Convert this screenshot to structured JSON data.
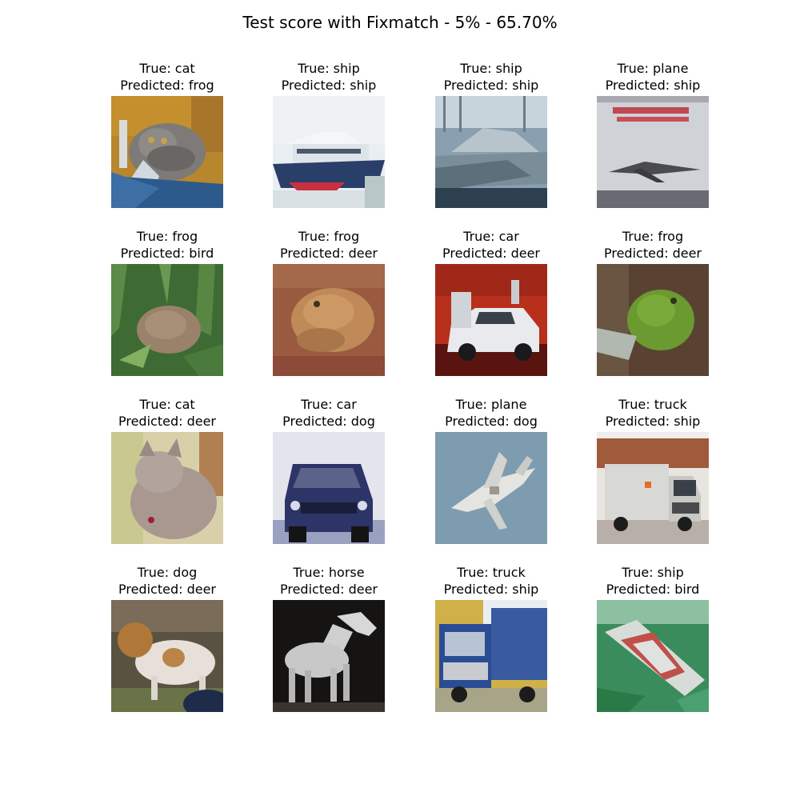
{
  "figure": {
    "title": "Test score with Fixmatch - 5% - 65.70%"
  },
  "samples": [
    {
      "true_label": "True: cat",
      "predicted_label": "Predicted: frog",
      "scene": "grey tabby cat lying on blue cloth, orange background"
    },
    {
      "true_label": "True: ship",
      "predicted_label": "Predicted: ship",
      "scene": "white ferry with blue hull on light water"
    },
    {
      "true_label": "True: ship",
      "predicted_label": "Predicted: ship",
      "scene": "grey motor boat in harbor"
    },
    {
      "true_label": "True: plane",
      "predicted_label": "Predicted: ship",
      "scene": "concorde-like jet on poster"
    },
    {
      "true_label": "True: frog",
      "predicted_label": "Predicted: bird",
      "scene": "brown frog among green grass"
    },
    {
      "true_label": "True: frog",
      "predicted_label": "Predicted: deer",
      "scene": "brown toad on reddish soil"
    },
    {
      "true_label": "True: car",
      "predicted_label": "Predicted: deer",
      "scene": "white car with open doors on red background"
    },
    {
      "true_label": "True: frog",
      "predicted_label": "Predicted: deer",
      "scene": "green tree frog on brown background"
    },
    {
      "true_label": "True: cat",
      "predicted_label": "Predicted: deer",
      "scene": "grey cat on pale yellow background"
    },
    {
      "true_label": "True: car",
      "predicted_label": "Predicted: dog",
      "scene": "dark blue SUV front view"
    },
    {
      "true_label": "True: plane",
      "predicted_label": "Predicted: dog",
      "scene": "white fighter jet in blue sky"
    },
    {
      "true_label": "True: truck",
      "predicted_label": "Predicted: ship",
      "scene": "white box truck in front of brick building"
    },
    {
      "true_label": "True: dog",
      "predicted_label": "Predicted: deer",
      "scene": "white and brown dog on grass"
    },
    {
      "true_label": "True: horse",
      "predicted_label": "Predicted: deer",
      "scene": "white horse on black background"
    },
    {
      "true_label": "True: truck",
      "predicted_label": "Predicted: ship",
      "scene": "blue dump truck"
    },
    {
      "true_label": "True: ship",
      "predicted_label": "Predicted: bird",
      "scene": "ship from above on green sea"
    }
  ]
}
